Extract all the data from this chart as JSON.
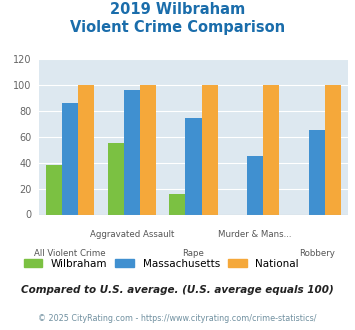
{
  "title_line1": "2019 Wilbraham",
  "title_line2": "Violent Crime Comparison",
  "categories": [
    "All Violent Crime",
    "Aggravated Assault",
    "Rape",
    "Murder & Mans...",
    "Robbery"
  ],
  "wilbraham": [
    38,
    55,
    16,
    0,
    0
  ],
  "massachusetts": [
    86,
    96,
    75,
    45,
    65
  ],
  "national": [
    100,
    100,
    100,
    100,
    100
  ],
  "wilbraham_color": "#7bc142",
  "massachusetts_color": "#4090d0",
  "national_color": "#f5a83a",
  "ylim": [
    0,
    120
  ],
  "yticks": [
    0,
    20,
    40,
    60,
    80,
    100,
    120
  ],
  "background_color": "#dde8f0",
  "legend_labels": [
    "Wilbraham",
    "Massachusetts",
    "National"
  ],
  "footnote1": "Compared to U.S. average. (U.S. average equals 100)",
  "footnote2": "© 2025 CityRating.com - https://www.cityrating.com/crime-statistics/",
  "title_color": "#1a6dab",
  "footnote1_color": "#222222",
  "footnote2_color": "#7090a0"
}
